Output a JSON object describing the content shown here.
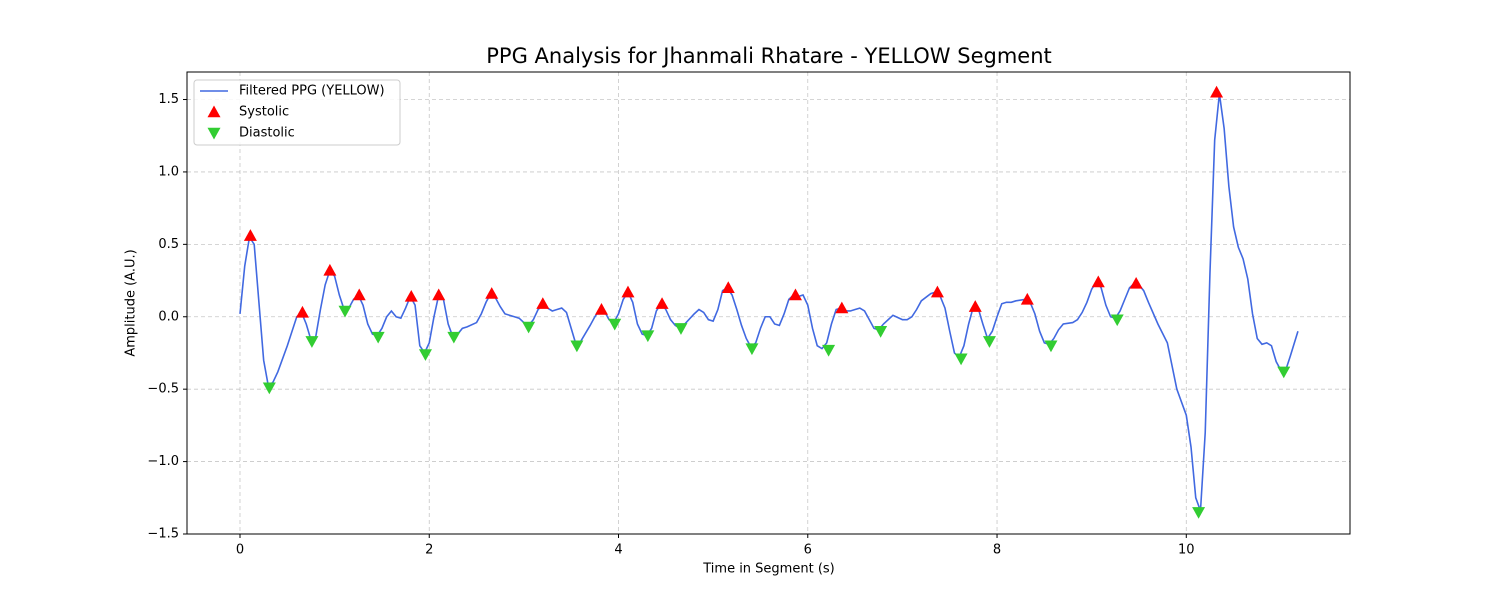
{
  "chart_data": {
    "type": "line",
    "title": "PPG Analysis for Jhanmali Rhatare - YELLOW Segment",
    "x_label": "Time in Segment (s)",
    "y_label": "Amplitude (A.U.)",
    "xlim": [
      -0.56,
      11.73
    ],
    "ylim": [
      -1.5,
      1.69
    ],
    "xticks": [
      0,
      2,
      4,
      6,
      8,
      10
    ],
    "yticks": [
      {
        "value": -1.5,
        "label": "−1.5"
      },
      {
        "value": -1.0,
        "label": "−1.0"
      },
      {
        "value": -0.5,
        "label": "−0.5"
      },
      {
        "value": 0,
        "label": "0.0"
      },
      0.5,
      {
        "value": 1.0,
        "label": "1.0"
      },
      1.5
    ],
    "grid": true,
    "legend": "upper left",
    "series": [
      {
        "name": "Filtered PPG (YELLOW)",
        "type": "line",
        "color": "#4169e1",
        "x": [
          0,
          0.05,
          0.1,
          0.15,
          0.2,
          0.25,
          0.3,
          0.35,
          0.4,
          0.5,
          0.6,
          0.65,
          0.7,
          0.75,
          0.8,
          0.85,
          0.9,
          0.95,
          1.0,
          1.05,
          1.1,
          1.15,
          1.2,
          1.25,
          1.3,
          1.35,
          1.4,
          1.45,
          1.5,
          1.55,
          1.6,
          1.65,
          1.7,
          1.75,
          1.8,
          1.85,
          1.9,
          1.95,
          2.0,
          2.05,
          2.1,
          2.15,
          2.2,
          2.25,
          2.3,
          2.35,
          2.4,
          2.5,
          2.55,
          2.6,
          2.65,
          2.7,
          2.75,
          2.8,
          2.9,
          2.95,
          3.0,
          3.05,
          3.1,
          3.15,
          3.2,
          3.25,
          3.3,
          3.35,
          3.4,
          3.45,
          3.5,
          3.55,
          3.6,
          3.7,
          3.75,
          3.8,
          3.85,
          3.9,
          3.95,
          4.0,
          4.05,
          4.1,
          4.15,
          4.2,
          4.25,
          4.3,
          4.35,
          4.4,
          4.45,
          4.5,
          4.55,
          4.6,
          4.65,
          4.7,
          4.8,
          4.85,
          4.9,
          4.95,
          5.0,
          5.05,
          5.1,
          5.15,
          5.2,
          5.25,
          5.3,
          5.35,
          5.4,
          5.45,
          5.5,
          5.55,
          5.6,
          5.65,
          5.7,
          5.75,
          5.8,
          5.85,
          5.9,
          5.95,
          6.0,
          6.05,
          6.1,
          6.15,
          6.2,
          6.25,
          6.3,
          6.35,
          6.4,
          6.45,
          6.5,
          6.55,
          6.6,
          6.65,
          6.7,
          6.75,
          6.8,
          6.9,
          7.0,
          7.05,
          7.1,
          7.15,
          7.2,
          7.3,
          7.35,
          7.4,
          7.45,
          7.5,
          7.55,
          7.6,
          7.65,
          7.7,
          7.75,
          7.8,
          7.85,
          7.9,
          7.95,
          8.0,
          8.05,
          8.1,
          8.15,
          8.2,
          8.3,
          8.35,
          8.4,
          8.45,
          8.5,
          8.55,
          8.6,
          8.65,
          8.7,
          8.8,
          8.85,
          8.9,
          8.95,
          9.0,
          9.05,
          9.1,
          9.15,
          9.2,
          9.25,
          9.3,
          9.35,
          9.4,
          9.45,
          9.5,
          9.55,
          9.6,
          9.7,
          9.8,
          9.9,
          10.0,
          10.05,
          10.1,
          10.15,
          10.2,
          10.25,
          10.3,
          10.35,
          10.4,
          10.45,
          10.5,
          10.55,
          10.6,
          10.65,
          10.7,
          10.75,
          10.8,
          10.85,
          10.9,
          10.95,
          11.0,
          11.05,
          11.1,
          11.18
        ],
        "values": [
          0.02,
          0.35,
          0.55,
          0.5,
          0.1,
          -0.3,
          -0.48,
          -0.45,
          -0.38,
          -0.2,
          0.0,
          0.03,
          -0.05,
          -0.16,
          -0.14,
          0.05,
          0.22,
          0.32,
          0.28,
          0.15,
          0.05,
          0.06,
          0.12,
          0.15,
          0.08,
          -0.05,
          -0.12,
          -0.13,
          -0.08,
          0.0,
          0.04,
          0.0,
          -0.01,
          0.06,
          0.14,
          0.08,
          -0.2,
          -0.25,
          -0.18,
          0.0,
          0.15,
          0.12,
          -0.05,
          -0.14,
          -0.12,
          -0.08,
          -0.07,
          -0.04,
          0.02,
          0.1,
          0.16,
          0.13,
          0.07,
          0.02,
          0.0,
          -0.01,
          -0.04,
          -0.06,
          -0.02,
          0.05,
          0.08,
          0.06,
          0.04,
          0.05,
          0.06,
          0.03,
          -0.08,
          -0.19,
          -0.17,
          -0.06,
          0.0,
          0.05,
          0.04,
          -0.02,
          -0.04,
          0.02,
          0.12,
          0.17,
          0.1,
          -0.05,
          -0.12,
          -0.13,
          -0.08,
          0.04,
          0.09,
          0.05,
          -0.02,
          -0.06,
          -0.08,
          -0.05,
          0.02,
          0.05,
          0.03,
          -0.02,
          -0.03,
          0.05,
          0.18,
          0.2,
          0.15,
          0.05,
          -0.06,
          -0.15,
          -0.21,
          -0.18,
          -0.08,
          0.0,
          0.0,
          -0.05,
          -0.06,
          0.02,
          0.12,
          0.15,
          0.14,
          0.15,
          0.08,
          -0.08,
          -0.2,
          -0.22,
          -0.18,
          -0.05,
          0.05,
          0.06,
          0.04,
          0.04,
          0.05,
          0.06,
          0.04,
          -0.02,
          -0.08,
          -0.09,
          -0.05,
          0.01,
          -0.02,
          -0.02,
          0.0,
          0.05,
          0.11,
          0.16,
          0.17,
          0.14,
          0.06,
          -0.1,
          -0.25,
          -0.28,
          -0.2,
          -0.05,
          0.07,
          0.06,
          -0.05,
          -0.15,
          -0.1,
          0.0,
          0.09,
          0.1,
          0.1,
          0.11,
          0.12,
          0.1,
          0.02,
          -0.1,
          -0.18,
          -0.19,
          -0.15,
          -0.09,
          -0.05,
          -0.04,
          -0.02,
          0.03,
          0.1,
          0.19,
          0.24,
          0.2,
          0.08,
          0.0,
          -0.01,
          0.04,
          0.12,
          0.2,
          0.23,
          0.22,
          0.18,
          0.1,
          -0.05,
          -0.18,
          -0.5,
          -0.68,
          -0.9,
          -1.25,
          -1.34,
          -0.8,
          0.3,
          1.22,
          1.54,
          1.3,
          0.9,
          0.62,
          0.48,
          0.4,
          0.26,
          0.02,
          -0.15,
          -0.19,
          -0.18,
          -0.2,
          -0.31,
          -0.37,
          -0.37,
          -0.27,
          -0.1
        ]
      },
      {
        "name": "Systolic",
        "type": "scatter",
        "marker": "triangle-up",
        "color": "#ff0000",
        "x": [
          0.11,
          0.66,
          0.95,
          1.26,
          1.81,
          2.1,
          2.66,
          3.2,
          3.82,
          4.1,
          4.46,
          5.16,
          5.87,
          6.36,
          7.37,
          7.77,
          8.32,
          9.07,
          9.47,
          10.32
        ],
        "values": [
          0.56,
          0.03,
          0.32,
          0.15,
          0.14,
          0.15,
          0.16,
          0.09,
          0.05,
          0.17,
          0.09,
          0.2,
          0.15,
          0.06,
          0.17,
          0.07,
          0.12,
          0.24,
          0.23,
          1.55
        ]
      },
      {
        "name": "Diastolic",
        "type": "scatter",
        "marker": "triangle-down",
        "color": "#32cd32",
        "x": [
          0.31,
          0.76,
          1.11,
          1.46,
          1.96,
          2.26,
          3.05,
          3.56,
          3.96,
          4.31,
          4.66,
          5.41,
          6.22,
          6.77,
          7.62,
          7.92,
          8.57,
          9.27,
          10.13,
          11.03
        ],
        "values": [
          -0.49,
          -0.17,
          0.04,
          -0.14,
          -0.26,
          -0.14,
          -0.07,
          -0.2,
          -0.05,
          -0.13,
          -0.08,
          -0.22,
          -0.23,
          -0.1,
          -0.29,
          -0.17,
          -0.2,
          -0.02,
          -1.35,
          -0.38
        ]
      }
    ]
  }
}
